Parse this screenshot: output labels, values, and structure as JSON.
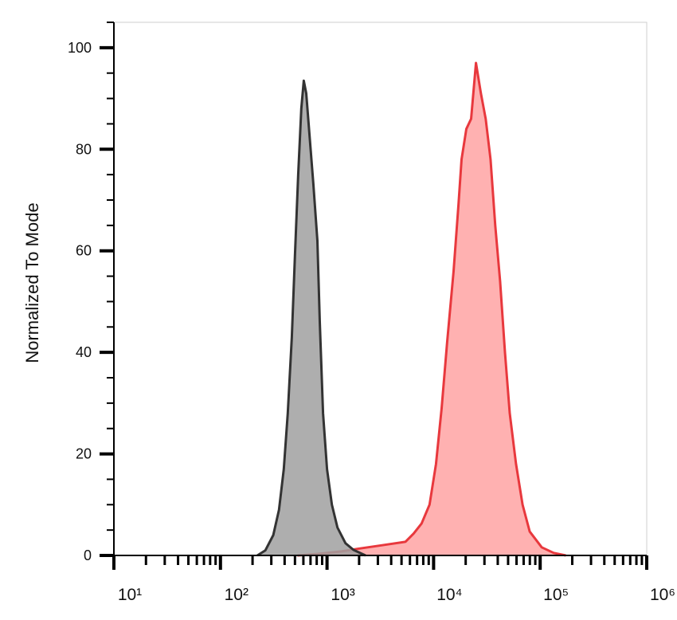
{
  "chart_data": {
    "type": "area",
    "y_label": "Normalized To Mode",
    "xscale": "log",
    "xlim": [
      10,
      1000000
    ],
    "xticks": [
      {
        "value": 10,
        "label": "10¹"
      },
      {
        "value": 100,
        "label": "10²"
      },
      {
        "value": 1000,
        "label": "10³"
      },
      {
        "value": 10000,
        "label": "10⁴"
      },
      {
        "value": 100000,
        "label": "10⁵"
      },
      {
        "value": 1000000,
        "label": "10⁶"
      }
    ],
    "xminorticks": [
      20,
      30,
      40,
      50,
      60,
      70,
      80,
      90,
      200,
      300,
      400,
      500,
      600,
      700,
      800,
      900,
      2000,
      3000,
      4000,
      5000,
      6000,
      7000,
      8000,
      9000,
      20000,
      30000,
      40000,
      50000,
      60000,
      70000,
      80000,
      90000,
      200000,
      300000,
      400000,
      500000,
      600000,
      700000,
      800000,
      900000
    ],
    "ylim": [
      0,
      105
    ],
    "yticks": [
      0,
      20,
      40,
      60,
      80,
      100
    ],
    "yminorticks": [
      5,
      10,
      15,
      25,
      30,
      35,
      45,
      50,
      55,
      65,
      70,
      75,
      85,
      90,
      95,
      105
    ],
    "series": [
      {
        "color": "#e8383d",
        "fill": "#ffb1b1",
        "x": [
          527,
          812,
          1365,
          1930,
          3240,
          5450,
          6490,
          7710,
          9160,
          10530,
          11900,
          13400,
          15400,
          17100,
          18300,
          20300,
          22500,
          25000,
          27800,
          30800,
          34200,
          37900,
          42100,
          46700,
          51800,
          59400,
          68400,
          79800,
          103500,
          134000,
          174000
        ],
        "values": [
          0,
          0.3,
          0.8,
          1.3,
          2,
          2.7,
          4.3,
          6.3,
          10,
          18,
          29,
          42,
          56,
          69,
          78,
          84,
          86,
          97,
          91,
          86,
          78,
          65,
          54,
          40,
          28,
          18,
          10,
          4.7,
          1.6,
          0.5,
          0
        ]
      },
      {
        "color": "#333333",
        "fill": "#a0a0a0",
        "x": [
          222,
          264,
          313,
          354,
          393,
          428,
          467,
          500,
          536,
          574,
          605,
          638,
          684,
          745,
          812,
          855,
          917,
          1000,
          1110,
          1252,
          1490,
          1770,
          2296
        ],
        "values": [
          0,
          1,
          4,
          9,
          17,
          28,
          43,
          59,
          75,
          88,
          93.5,
          91,
          83,
          73,
          62,
          46,
          28,
          17,
          10,
          5.5,
          2.4,
          1.1,
          0
        ]
      }
    ]
  }
}
